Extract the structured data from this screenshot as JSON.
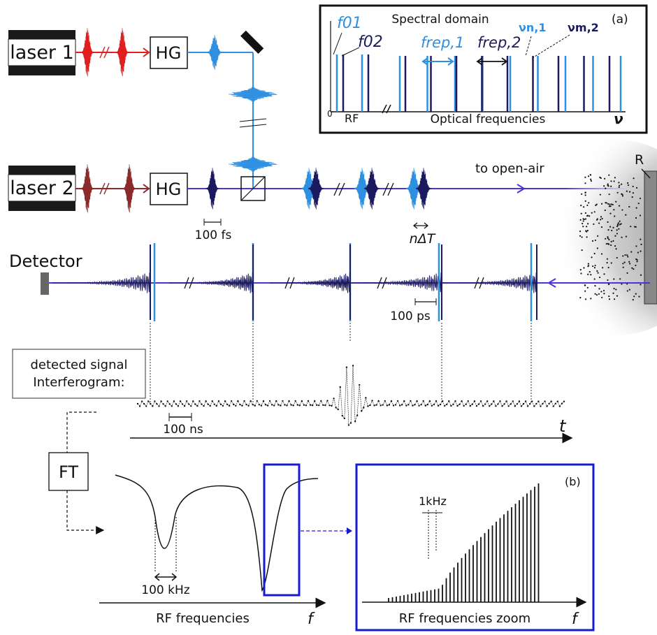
{
  "lasers": {
    "laser1": "laser 1",
    "laser2": "laser 2"
  },
  "hg": {
    "hg1": "HG",
    "hg2": "HG"
  },
  "pulse_scales": {
    "fs": "100 fs",
    "delay": "nΔT",
    "ps": "100 ps",
    "ns": "100 ns"
  },
  "open_air": {
    "label": "to open-air",
    "retro": "R"
  },
  "detector": "Detector",
  "signal_box": {
    "line1": "detected signal",
    "line2": "Interferogram:"
  },
  "time_axis": "t",
  "ft": "FT",
  "spectral_panel": {
    "title": "Spectral domain",
    "tag": "(a)",
    "f01": "f01",
    "f02": "f02",
    "frep1": "frep,1",
    "frep2": "frep,2",
    "nu_n1": "νn,1",
    "nu_m2": "νm,2",
    "zero": "0",
    "rf": "RF",
    "optical": "Optical frequencies",
    "nu": "ν"
  },
  "rf_panel": {
    "khz100": "100 kHz",
    "xlabel": "RF frequencies",
    "faxis": "f"
  },
  "zoom_panel": {
    "tag": "(b)",
    "khz1": "1kHz",
    "xlabel": "RF frequencies zoom",
    "faxis": "f"
  },
  "colors": {
    "comb1": "#2f8fe0",
    "comb2": "#1c1a5e",
    "beam": "#4a35d8",
    "laser1_pulse": "#e02020",
    "laser2_pulse": "#8a2a2a",
    "box_blue": "#1a1ad0"
  }
}
